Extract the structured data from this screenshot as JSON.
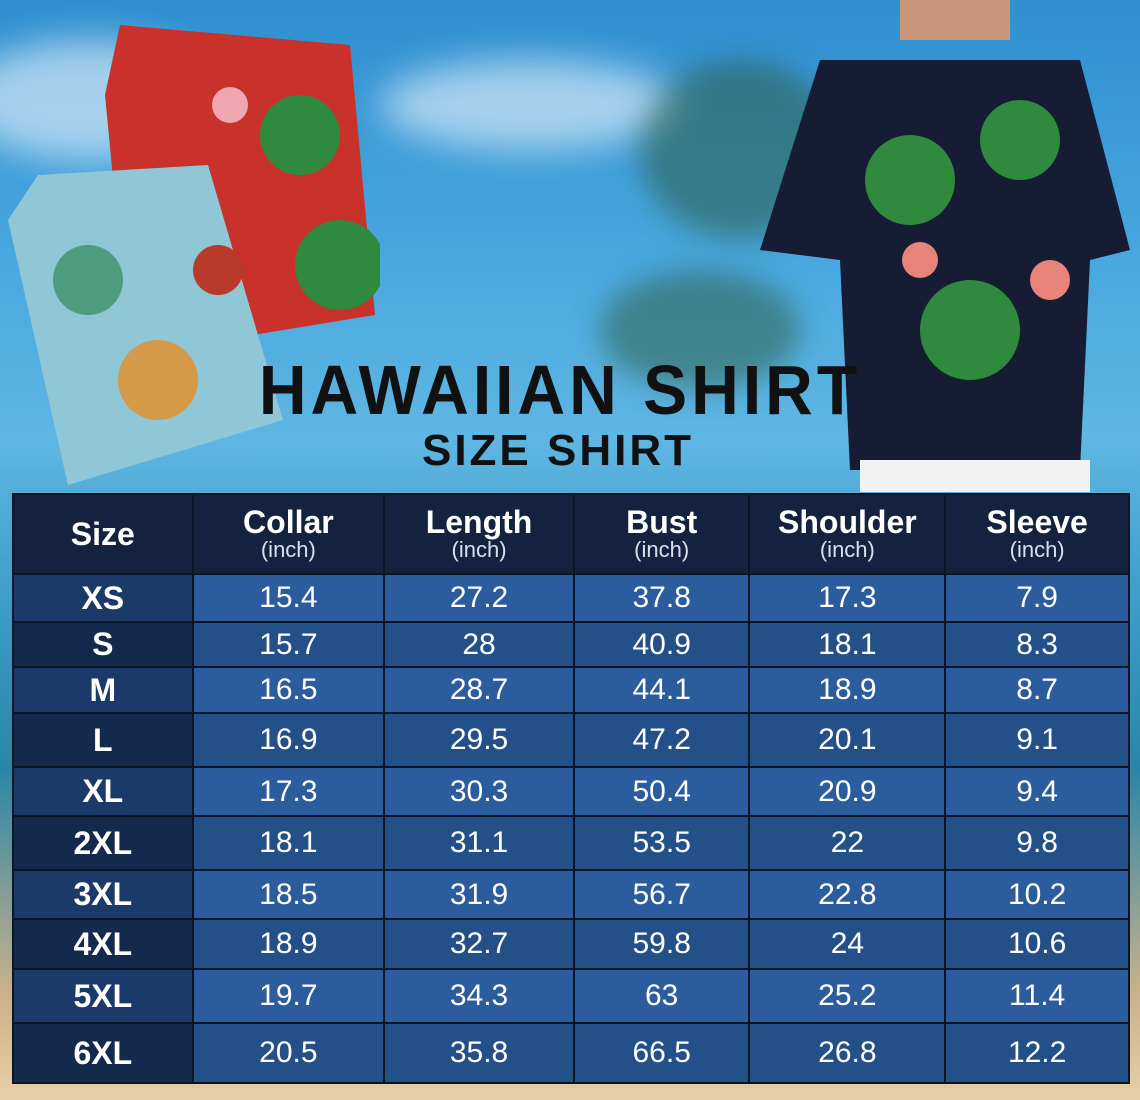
{
  "title": "HAWAIIAN SHIRT",
  "subtitle": "SIZE SHIRT",
  "colors": {
    "header_bg": "#13223f",
    "row_light": "#2b5c9e",
    "row_dark": "#24508a",
    "size_col": "#1c3a69"
  },
  "table": {
    "columns": [
      {
        "label": "Size",
        "unit": ""
      },
      {
        "label": "Collar",
        "unit": "(inch)"
      },
      {
        "label": "Length",
        "unit": "(inch)"
      },
      {
        "label": "Bust",
        "unit": "(inch)"
      },
      {
        "label": "Shoulder",
        "unit": "(inch)"
      },
      {
        "label": "Sleeve",
        "unit": "(inch)"
      }
    ],
    "rows": [
      [
        "XS",
        "15.4",
        "27.2",
        "37.8",
        "17.3",
        "7.9"
      ],
      [
        "S",
        "15.7",
        "28",
        "40.9",
        "18.1",
        "8.3"
      ],
      [
        "M",
        "16.5",
        "28.7",
        "44.1",
        "18.9",
        "8.7"
      ],
      [
        "L",
        "16.9",
        "29.5",
        "47.2",
        "20.1",
        "9.1"
      ],
      [
        "XL",
        "17.3",
        "30.3",
        "50.4",
        "20.9",
        "9.4"
      ],
      [
        "2XL",
        "18.1",
        "31.1",
        "53.5",
        "22",
        "9.8"
      ],
      [
        "3XL",
        "18.5",
        "31.9",
        "56.7",
        "22.8",
        "10.2"
      ],
      [
        "4XL",
        "18.9",
        "32.7",
        "59.8",
        "24",
        "10.6"
      ],
      [
        "5XL",
        "19.7",
        "34.3",
        "63",
        "25.2",
        "11.4"
      ],
      [
        "6XL",
        "20.5",
        "35.8",
        "66.5",
        "26.8",
        "12.2"
      ]
    ]
  }
}
